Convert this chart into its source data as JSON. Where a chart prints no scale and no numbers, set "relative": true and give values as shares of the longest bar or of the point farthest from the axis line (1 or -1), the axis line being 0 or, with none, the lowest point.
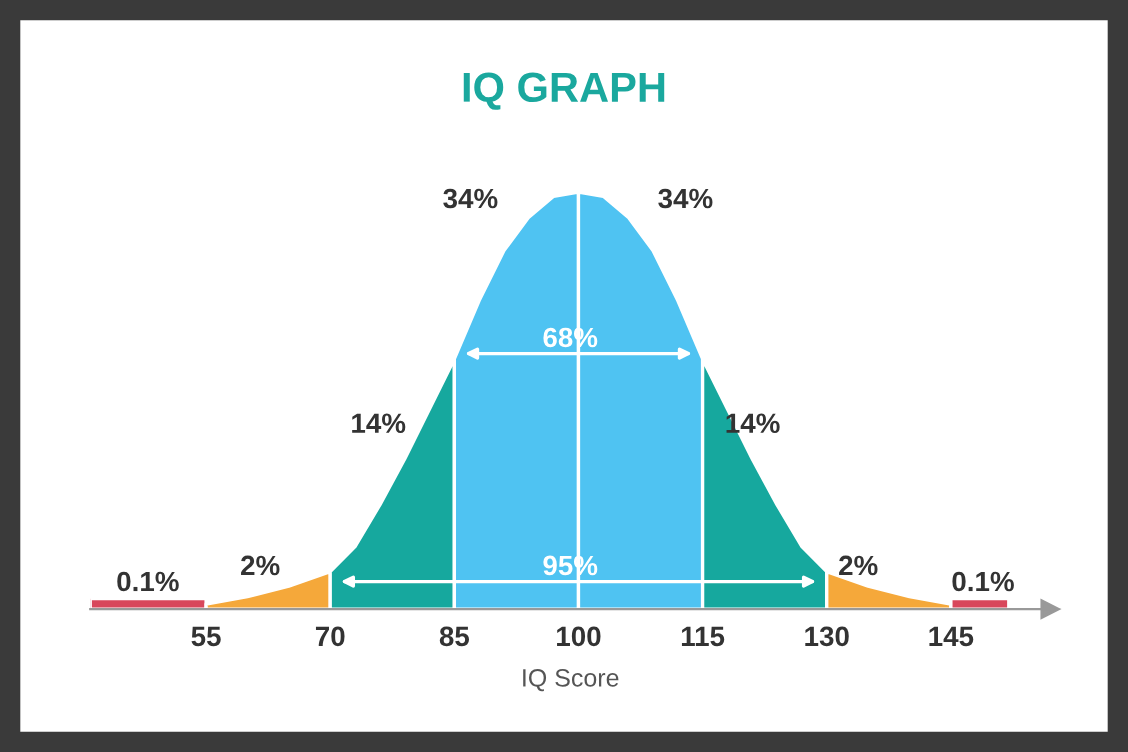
{
  "chart_data": {
    "type": "area",
    "title": "IQ GRAPH",
    "xlabel": "IQ Score",
    "relative": true,
    "xlim": [
      41,
      157
    ],
    "xticks": [
      55,
      70,
      85,
      100,
      115,
      130,
      145
    ],
    "series": [
      {
        "color": "#d8475b",
        "x": [
          41,
          55
        ],
        "values": [
          0.025,
          0.025
        ]
      },
      {
        "color": "#f5a83a",
        "x": [
          55,
          60,
          65,
          70
        ],
        "values": [
          0.012,
          0.03,
          0.055,
          0.09
        ]
      },
      {
        "color": "#16a89e",
        "x": [
          70,
          73,
          76,
          79,
          82,
          85
        ],
        "values": [
          0.09,
          0.15,
          0.25,
          0.36,
          0.48,
          0.6
        ]
      },
      {
        "color": "#4fc3f2",
        "x": [
          85,
          88,
          91,
          94,
          97,
          100
        ],
        "values": [
          0.6,
          0.74,
          0.86,
          0.94,
          0.99,
          1
        ]
      },
      {
        "color": "#4fc3f2",
        "x": [
          100,
          103,
          106,
          109,
          112,
          115
        ],
        "values": [
          1,
          0.99,
          0.94,
          0.86,
          0.74,
          0.6
        ]
      },
      {
        "color": "#16a89e",
        "x": [
          115,
          118,
          121,
          124,
          127,
          130
        ],
        "values": [
          0.6,
          0.48,
          0.36,
          0.25,
          0.15,
          0.09
        ]
      },
      {
        "color": "#f5a83a",
        "x": [
          130,
          135,
          140,
          145
        ],
        "values": [
          0.09,
          0.055,
          0.03,
          0.012
        ]
      },
      {
        "color": "#d8475b",
        "x": [
          145,
          152
        ],
        "values": [
          0.025,
          0.025
        ]
      }
    ],
    "annotations": [
      "34%",
      "34%",
      "68%",
      "14%",
      "14%",
      "2%",
      "95%",
      "2%",
      "0.1%",
      "0.1%"
    ]
  }
}
